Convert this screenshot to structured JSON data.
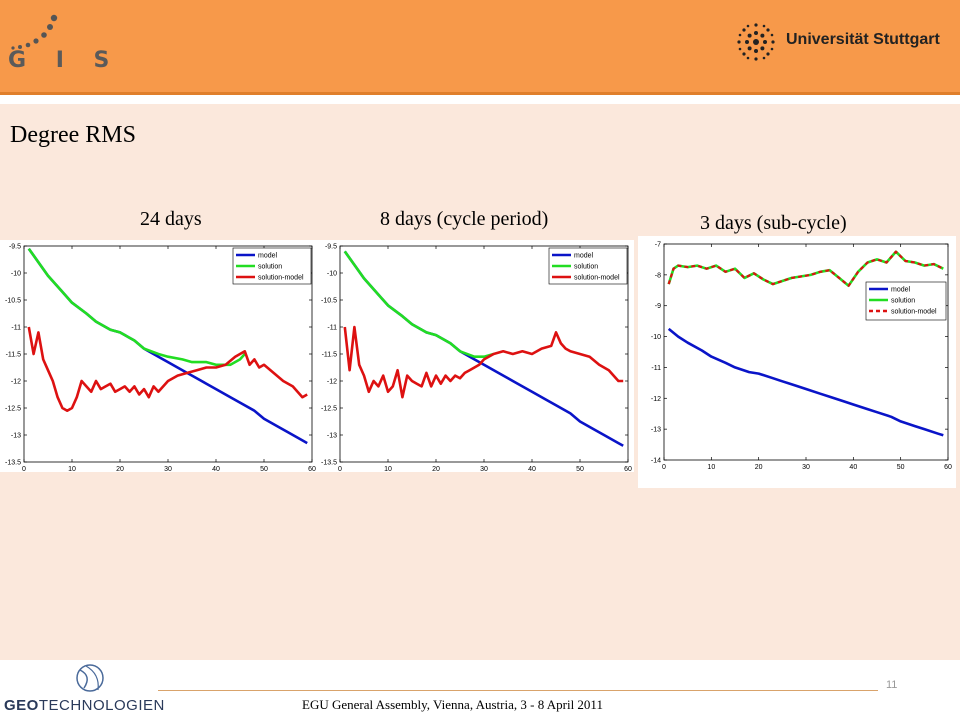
{
  "header": {
    "gis_logo_text": "G I S",
    "university_name": "Universität Stuttgart"
  },
  "slide": {
    "title": "Degree RMS"
  },
  "footer": {
    "conference": "EGU General Assembly, Vienna, Austria, 3 - 8 April 2011",
    "page_number": "11",
    "sponsor_bold": "GEO",
    "sponsor_rest": "TECHNOLOGIEN"
  },
  "colors": {
    "header": "#f7994a",
    "content_background": "#fbe8dc",
    "model": "#0a14c8",
    "solution": "#22dd22",
    "solution_model": "#dd1111"
  },
  "chart_data": [
    {
      "type": "line",
      "title": "24 days",
      "xlim": [
        0,
        60
      ],
      "ylim": [
        -13.5,
        -9.5
      ],
      "xticks": [
        0,
        10,
        20,
        30,
        40,
        50,
        60
      ],
      "yticks": [
        -9.5,
        -10,
        -10.5,
        -11,
        -11.5,
        -12,
        -12.5,
        -13,
        -13.5
      ],
      "legend_position": "top-right",
      "series": [
        {
          "name": "model",
          "color": "#0a14c8",
          "x": [
            1,
            3,
            5,
            8,
            10,
            13,
            15,
            18,
            20,
            23,
            25,
            28,
            30,
            33,
            35,
            38,
            40,
            43,
            45,
            48,
            50,
            53,
            55,
            58,
            59
          ],
          "y": [
            -9.55,
            -9.8,
            -10.05,
            -10.35,
            -10.55,
            -10.75,
            -10.9,
            -11.05,
            -11.1,
            -11.25,
            -11.4,
            -11.55,
            -11.65,
            -11.8,
            -11.9,
            -12.05,
            -12.15,
            -12.3,
            -12.4,
            -12.55,
            -12.7,
            -12.85,
            -12.95,
            -13.1,
            -13.15
          ]
        },
        {
          "name": "solution",
          "color": "#22dd22",
          "x": [
            1,
            3,
            5,
            8,
            10,
            13,
            15,
            18,
            20,
            23,
            25,
            28,
            30,
            33,
            35,
            38,
            40,
            43,
            45,
            46
          ],
          "y": [
            -9.55,
            -9.8,
            -10.05,
            -10.35,
            -10.55,
            -10.75,
            -10.9,
            -11.05,
            -11.1,
            -11.25,
            -11.4,
            -11.5,
            -11.55,
            -11.6,
            -11.65,
            -11.65,
            -11.7,
            -11.7,
            -11.6,
            -11.5
          ]
        },
        {
          "name": "solution-model",
          "color": "#dd1111",
          "x": [
            1,
            2,
            3,
            4,
            5,
            6,
            7,
            8,
            9,
            10,
            11,
            12,
            13,
            14,
            15,
            16,
            17,
            18,
            19,
            20,
            21,
            22,
            23,
            24,
            25,
            26,
            27,
            28,
            29,
            30,
            32,
            34,
            36,
            38,
            40,
            42,
            44,
            45,
            46,
            47,
            48,
            49,
            50,
            52,
            54,
            56,
            58,
            59
          ],
          "y": [
            -11.0,
            -11.5,
            -11.1,
            -11.6,
            -11.8,
            -12.0,
            -12.3,
            -12.5,
            -12.55,
            -12.5,
            -12.3,
            -12.0,
            -12.1,
            -12.2,
            -12.0,
            -12.15,
            -12.1,
            -12.05,
            -12.2,
            -12.15,
            -12.1,
            -12.2,
            -12.1,
            -12.25,
            -12.15,
            -12.3,
            -12.1,
            -12.2,
            -12.1,
            -12.0,
            -11.9,
            -11.85,
            -11.8,
            -11.75,
            -11.75,
            -11.7,
            -11.55,
            -11.5,
            -11.45,
            -11.7,
            -11.6,
            -11.75,
            -11.7,
            -11.85,
            -12.0,
            -12.1,
            -12.3,
            -12.25
          ]
        }
      ]
    },
    {
      "type": "line",
      "title": "8 days (cycle period)",
      "xlim": [
        0,
        60
      ],
      "ylim": [
        -13.5,
        -9.5
      ],
      "xticks": [
        0,
        10,
        20,
        30,
        40,
        50,
        60
      ],
      "yticks": [
        -9.5,
        -10,
        -10.5,
        -11,
        -11.5,
        -12,
        -12.5,
        -13,
        -13.5
      ],
      "legend_position": "top-right",
      "series": [
        {
          "name": "model",
          "color": "#0a14c8",
          "x": [
            1,
            3,
            5,
            8,
            10,
            13,
            15,
            18,
            20,
            23,
            25,
            28,
            30,
            33,
            35,
            38,
            40,
            43,
            45,
            48,
            50,
            53,
            55,
            58,
            59
          ],
          "y": [
            -9.6,
            -9.85,
            -10.1,
            -10.4,
            -10.6,
            -10.8,
            -10.95,
            -11.1,
            -11.15,
            -11.3,
            -11.45,
            -11.6,
            -11.7,
            -11.85,
            -11.95,
            -12.1,
            -12.2,
            -12.35,
            -12.45,
            -12.6,
            -12.75,
            -12.9,
            -13.0,
            -13.15,
            -13.2
          ]
        },
        {
          "name": "solution",
          "color": "#22dd22",
          "x": [
            1,
            3,
            5,
            8,
            10,
            13,
            15,
            18,
            20,
            23,
            25,
            28,
            30,
            32
          ],
          "y": [
            -9.6,
            -9.85,
            -10.1,
            -10.4,
            -10.6,
            -10.8,
            -10.95,
            -11.1,
            -11.15,
            -11.3,
            -11.45,
            -11.55,
            -11.55,
            -11.5
          ]
        },
        {
          "name": "solution-model",
          "color": "#dd1111",
          "x": [
            1,
            2,
            3,
            4,
            5,
            6,
            7,
            8,
            9,
            10,
            11,
            12,
            13,
            14,
            15,
            16,
            17,
            18,
            19,
            20,
            21,
            22,
            23,
            24,
            25,
            26,
            27,
            28,
            29,
            30,
            32,
            34,
            36,
            38,
            40,
            42,
            44,
            45,
            46,
            47,
            48,
            50,
            52,
            54,
            56,
            58,
            59
          ],
          "y": [
            -11.0,
            -11.8,
            -11.0,
            -11.7,
            -11.9,
            -12.2,
            -12.0,
            -12.1,
            -11.9,
            -12.2,
            -12.1,
            -11.8,
            -12.3,
            -11.9,
            -12.0,
            -12.05,
            -12.1,
            -11.85,
            -12.1,
            -11.9,
            -12.05,
            -11.9,
            -12.0,
            -11.9,
            -11.95,
            -11.85,
            -11.8,
            -11.75,
            -11.7,
            -11.6,
            -11.5,
            -11.45,
            -11.5,
            -11.45,
            -11.5,
            -11.4,
            -11.35,
            -11.1,
            -11.3,
            -11.4,
            -11.45,
            -11.5,
            -11.55,
            -11.7,
            -11.8,
            -12.0,
            -12.0
          ]
        }
      ]
    },
    {
      "type": "line",
      "title": "3 days (sub-cycle)",
      "xlim": [
        0,
        60
      ],
      "ylim": [
        -14,
        -7
      ],
      "xticks": [
        0,
        10,
        20,
        30,
        40,
        50,
        60
      ],
      "yticks": [
        -7,
        -8,
        -9,
        -10,
        -11,
        -12,
        -13,
        -14
      ],
      "legend_position": "right",
      "series": [
        {
          "name": "model",
          "color": "#0a14c8",
          "x": [
            1,
            3,
            5,
            8,
            10,
            13,
            15,
            18,
            20,
            23,
            25,
            28,
            30,
            33,
            35,
            38,
            40,
            43,
            45,
            48,
            50,
            53,
            55,
            58,
            59
          ],
          "y": [
            -9.75,
            -10.0,
            -10.2,
            -10.45,
            -10.65,
            -10.85,
            -11.0,
            -11.15,
            -11.2,
            -11.35,
            -11.45,
            -11.6,
            -11.7,
            -11.85,
            -11.95,
            -12.1,
            -12.2,
            -12.35,
            -12.45,
            -12.6,
            -12.75,
            -12.9,
            -13.0,
            -13.15,
            -13.2
          ]
        },
        {
          "name": "solution",
          "color": "#22dd22",
          "x": [
            1,
            2,
            3,
            5,
            7,
            9,
            11,
            13,
            15,
            17,
            19,
            21,
            23,
            25,
            27,
            29,
            31,
            33,
            35,
            37,
            39,
            41,
            43,
            45,
            47,
            49,
            51,
            53,
            55,
            57,
            59
          ],
          "y": [
            -8.3,
            -7.8,
            -7.7,
            -7.75,
            -7.7,
            -7.8,
            -7.7,
            -7.9,
            -7.8,
            -8.1,
            -7.95,
            -8.15,
            -8.3,
            -8.2,
            -8.1,
            -8.05,
            -8.0,
            -7.9,
            -7.85,
            -8.1,
            -8.35,
            -7.9,
            -7.6,
            -7.5,
            -7.6,
            -7.25,
            -7.55,
            -7.6,
            -7.7,
            -7.65,
            -7.8
          ]
        },
        {
          "name": "solution-model",
          "color": "#dd1111",
          "x": [
            1,
            2,
            3,
            5,
            7,
            9,
            11,
            13,
            15,
            17,
            19,
            21,
            23,
            25,
            27,
            29,
            31,
            33,
            35,
            37,
            39,
            41,
            43,
            45,
            47,
            49,
            51,
            53,
            55,
            57,
            59
          ],
          "y": [
            -8.3,
            -7.8,
            -7.7,
            -7.75,
            -7.7,
            -7.8,
            -7.7,
            -7.9,
            -7.8,
            -8.1,
            -7.95,
            -8.15,
            -8.3,
            -8.2,
            -8.1,
            -8.05,
            -8.0,
            -7.9,
            -7.85,
            -8.1,
            -8.35,
            -7.9,
            -7.6,
            -7.5,
            -7.6,
            -7.25,
            -7.55,
            -7.6,
            -7.7,
            -7.65,
            -7.8
          ]
        }
      ]
    }
  ]
}
